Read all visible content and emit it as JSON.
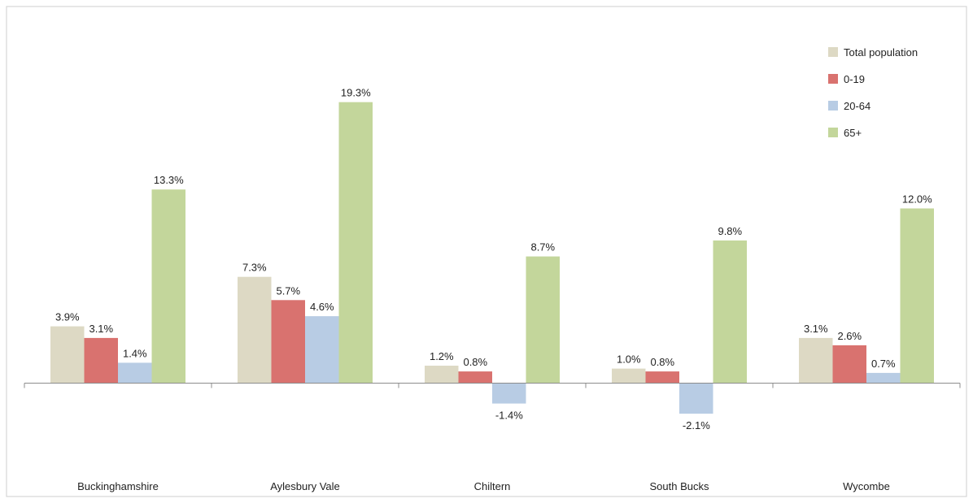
{
  "chart_data": {
    "type": "bar",
    "categories": [
      "Buckinghamshire",
      "Aylesbury Vale",
      "Chiltern",
      "South Bucks",
      "Wycombe"
    ],
    "series": [
      {
        "name": "Total population",
        "color": "#ddd9c4",
        "values": [
          3.9,
          7.3,
          1.2,
          1.0,
          3.1
        ],
        "labels": [
          "3.9%",
          "7.3%",
          "1.2%",
          "1.0%",
          "3.1%"
        ]
      },
      {
        "name": "0-19",
        "color": "#d9726f",
        "values": [
          3.1,
          5.7,
          0.8,
          0.8,
          2.6
        ],
        "labels": [
          "3.1%",
          "5.7%",
          "0.8%",
          "0.8%",
          "2.6%"
        ]
      },
      {
        "name": "20-64",
        "color": "#b8cce4",
        "values": [
          1.4,
          4.6,
          -1.4,
          -2.1,
          0.7
        ],
        "labels": [
          "1.4%",
          "4.6%",
          "-1.4%",
          "-2.1%",
          "0.7%"
        ]
      },
      {
        "name": "65+",
        "color": "#c3d69b",
        "values": [
          13.3,
          19.3,
          8.7,
          9.8,
          12.0
        ],
        "labels": [
          "13.3%",
          "19.3%",
          "8.7%",
          "9.8%",
          "12.0%"
        ]
      }
    ],
    "legend_position": "top-right",
    "grid": false,
    "ylim": [
      -5.5,
      25.2
    ],
    "title": "",
    "xlabel": "",
    "ylabel": ""
  }
}
